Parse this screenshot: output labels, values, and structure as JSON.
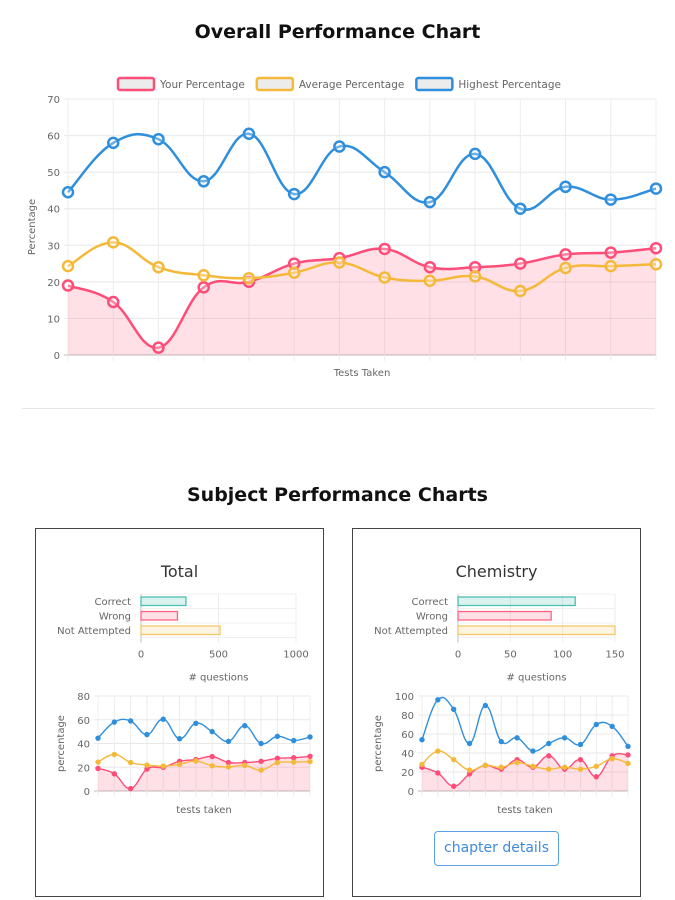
{
  "page": {
    "title": "Overall Performance Chart",
    "subjects_title": "Subject Performance Charts"
  },
  "colors": {
    "your": "#ff4d79",
    "average": "#f5b93a",
    "highest": "#2f8fdc",
    "correct": "#4bc0b0",
    "wrong": "#ff6384",
    "not_attempted": "#f5c96a"
  },
  "chart_data": [
    {
      "type": "line",
      "id": "overall",
      "xlabel": "Tests Taken",
      "ylabel": "Percentage",
      "ylim": [
        0,
        70
      ],
      "yticks": [
        0,
        10,
        20,
        30,
        40,
        50,
        60,
        70
      ],
      "grid": true,
      "legend": "top",
      "series": [
        {
          "name": "Your Percentage",
          "values": [
            19,
            14.5,
            2,
            18.5,
            20,
            25,
            26.5,
            29,
            24,
            24,
            25,
            27.5,
            28,
            29.2
          ],
          "fill": true
        },
        {
          "name": "Average Percentage",
          "values": [
            24.3,
            30.8,
            24,
            21.8,
            21,
            22.5,
            25.3,
            21.2,
            20.3,
            21.5,
            17.5,
            23.8,
            24.3,
            24.8
          ]
        },
        {
          "name": "Highest Percentage",
          "values": [
            44.5,
            58,
            59,
            47.5,
            60.5,
            44,
            57,
            50,
            41.8,
            55,
            40,
            46,
            42.5,
            45.5
          ]
        }
      ]
    },
    {
      "type": "bar",
      "id": "total-bars",
      "title": "Total",
      "categories": [
        "Correct",
        "Wrong",
        "Not Attempted"
      ],
      "values": [
        290,
        235,
        510
      ],
      "xlabel": "# questions",
      "xlim": [
        0,
        1000
      ],
      "xticks": [
        0,
        500,
        1000
      ]
    },
    {
      "type": "line",
      "id": "total-line",
      "xlabel": "tests taken",
      "ylabel": "percentage",
      "ylim": [
        0,
        80
      ],
      "yticks": [
        0,
        20,
        40,
        60,
        80
      ],
      "grid": true,
      "series": [
        {
          "values": [
            19,
            14.5,
            2,
            18.5,
            20,
            25,
            26.5,
            29,
            24,
            24,
            25,
            27.5,
            28,
            29.2
          ],
          "fill": true
        },
        {
          "values": [
            24.3,
            30.8,
            24,
            21.8,
            21,
            22.5,
            25.3,
            21.2,
            20.3,
            21.5,
            17.5,
            23.8,
            24.3,
            24.8
          ]
        },
        {
          "values": [
            44.5,
            58,
            59,
            47.5,
            60.5,
            44,
            57,
            50,
            41.8,
            55,
            40,
            46,
            42.5,
            45.5
          ]
        }
      ]
    },
    {
      "type": "bar",
      "id": "chem-bars",
      "title": "Chemistry",
      "categories": [
        "Correct",
        "Wrong",
        "Not Attempted"
      ],
      "values": [
        112,
        89,
        150
      ],
      "xlabel": "# questions",
      "xlim": [
        0,
        150
      ],
      "xticks": [
        0,
        50,
        100,
        150
      ]
    },
    {
      "type": "line",
      "id": "chem-line",
      "xlabel": "tests taken",
      "ylabel": "percentage",
      "ylim": [
        0,
        100
      ],
      "yticks": [
        0,
        20,
        40,
        60,
        80,
        100
      ],
      "grid": true,
      "series": [
        {
          "values": [
            25,
            19,
            5,
            18,
            27,
            23,
            33,
            25,
            37,
            23,
            33,
            15,
            37,
            38
          ],
          "fill": true
        },
        {
          "values": [
            28,
            42,
            33,
            22,
            27,
            25,
            30,
            26,
            23,
            25,
            23,
            26,
            34,
            29
          ]
        },
        {
          "values": [
            54,
            96,
            86,
            50,
            90,
            52,
            56,
            42,
            50,
            56,
            49,
            70,
            68,
            47
          ]
        }
      ]
    }
  ],
  "button": {
    "chapter_details": "chapter details"
  }
}
